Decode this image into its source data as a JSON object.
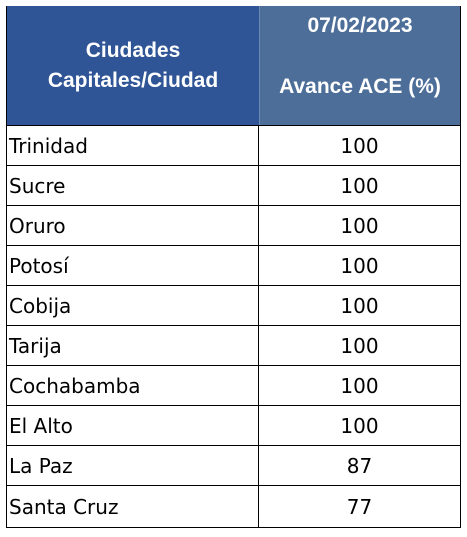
{
  "table": {
    "header": {
      "city_line1": "Ciudades",
      "city_line2": "Capitales/Ciudad",
      "date": "07/02/2023",
      "value_label": "Avance ACE (%)"
    },
    "rows": [
      {
        "city": "Trinidad",
        "value": "100"
      },
      {
        "city": "Sucre",
        "value": "100"
      },
      {
        "city": "Oruro",
        "value": "100"
      },
      {
        "city": "Potosí",
        "value": "100"
      },
      {
        "city": "Cobija",
        "value": "100"
      },
      {
        "city": "Tarija",
        "value": "100"
      },
      {
        "city": "Cochabamba",
        "value": "100"
      },
      {
        "city": "El Alto",
        "value": "100"
      },
      {
        "city": "La Paz",
        "value": "87"
      },
      {
        "city": "Santa Cruz",
        "value": "77"
      }
    ]
  },
  "colors": {
    "header_city_bg": "#2f5597",
    "header_value_bg": "#4d6e99",
    "header_text": "#ffffff"
  }
}
